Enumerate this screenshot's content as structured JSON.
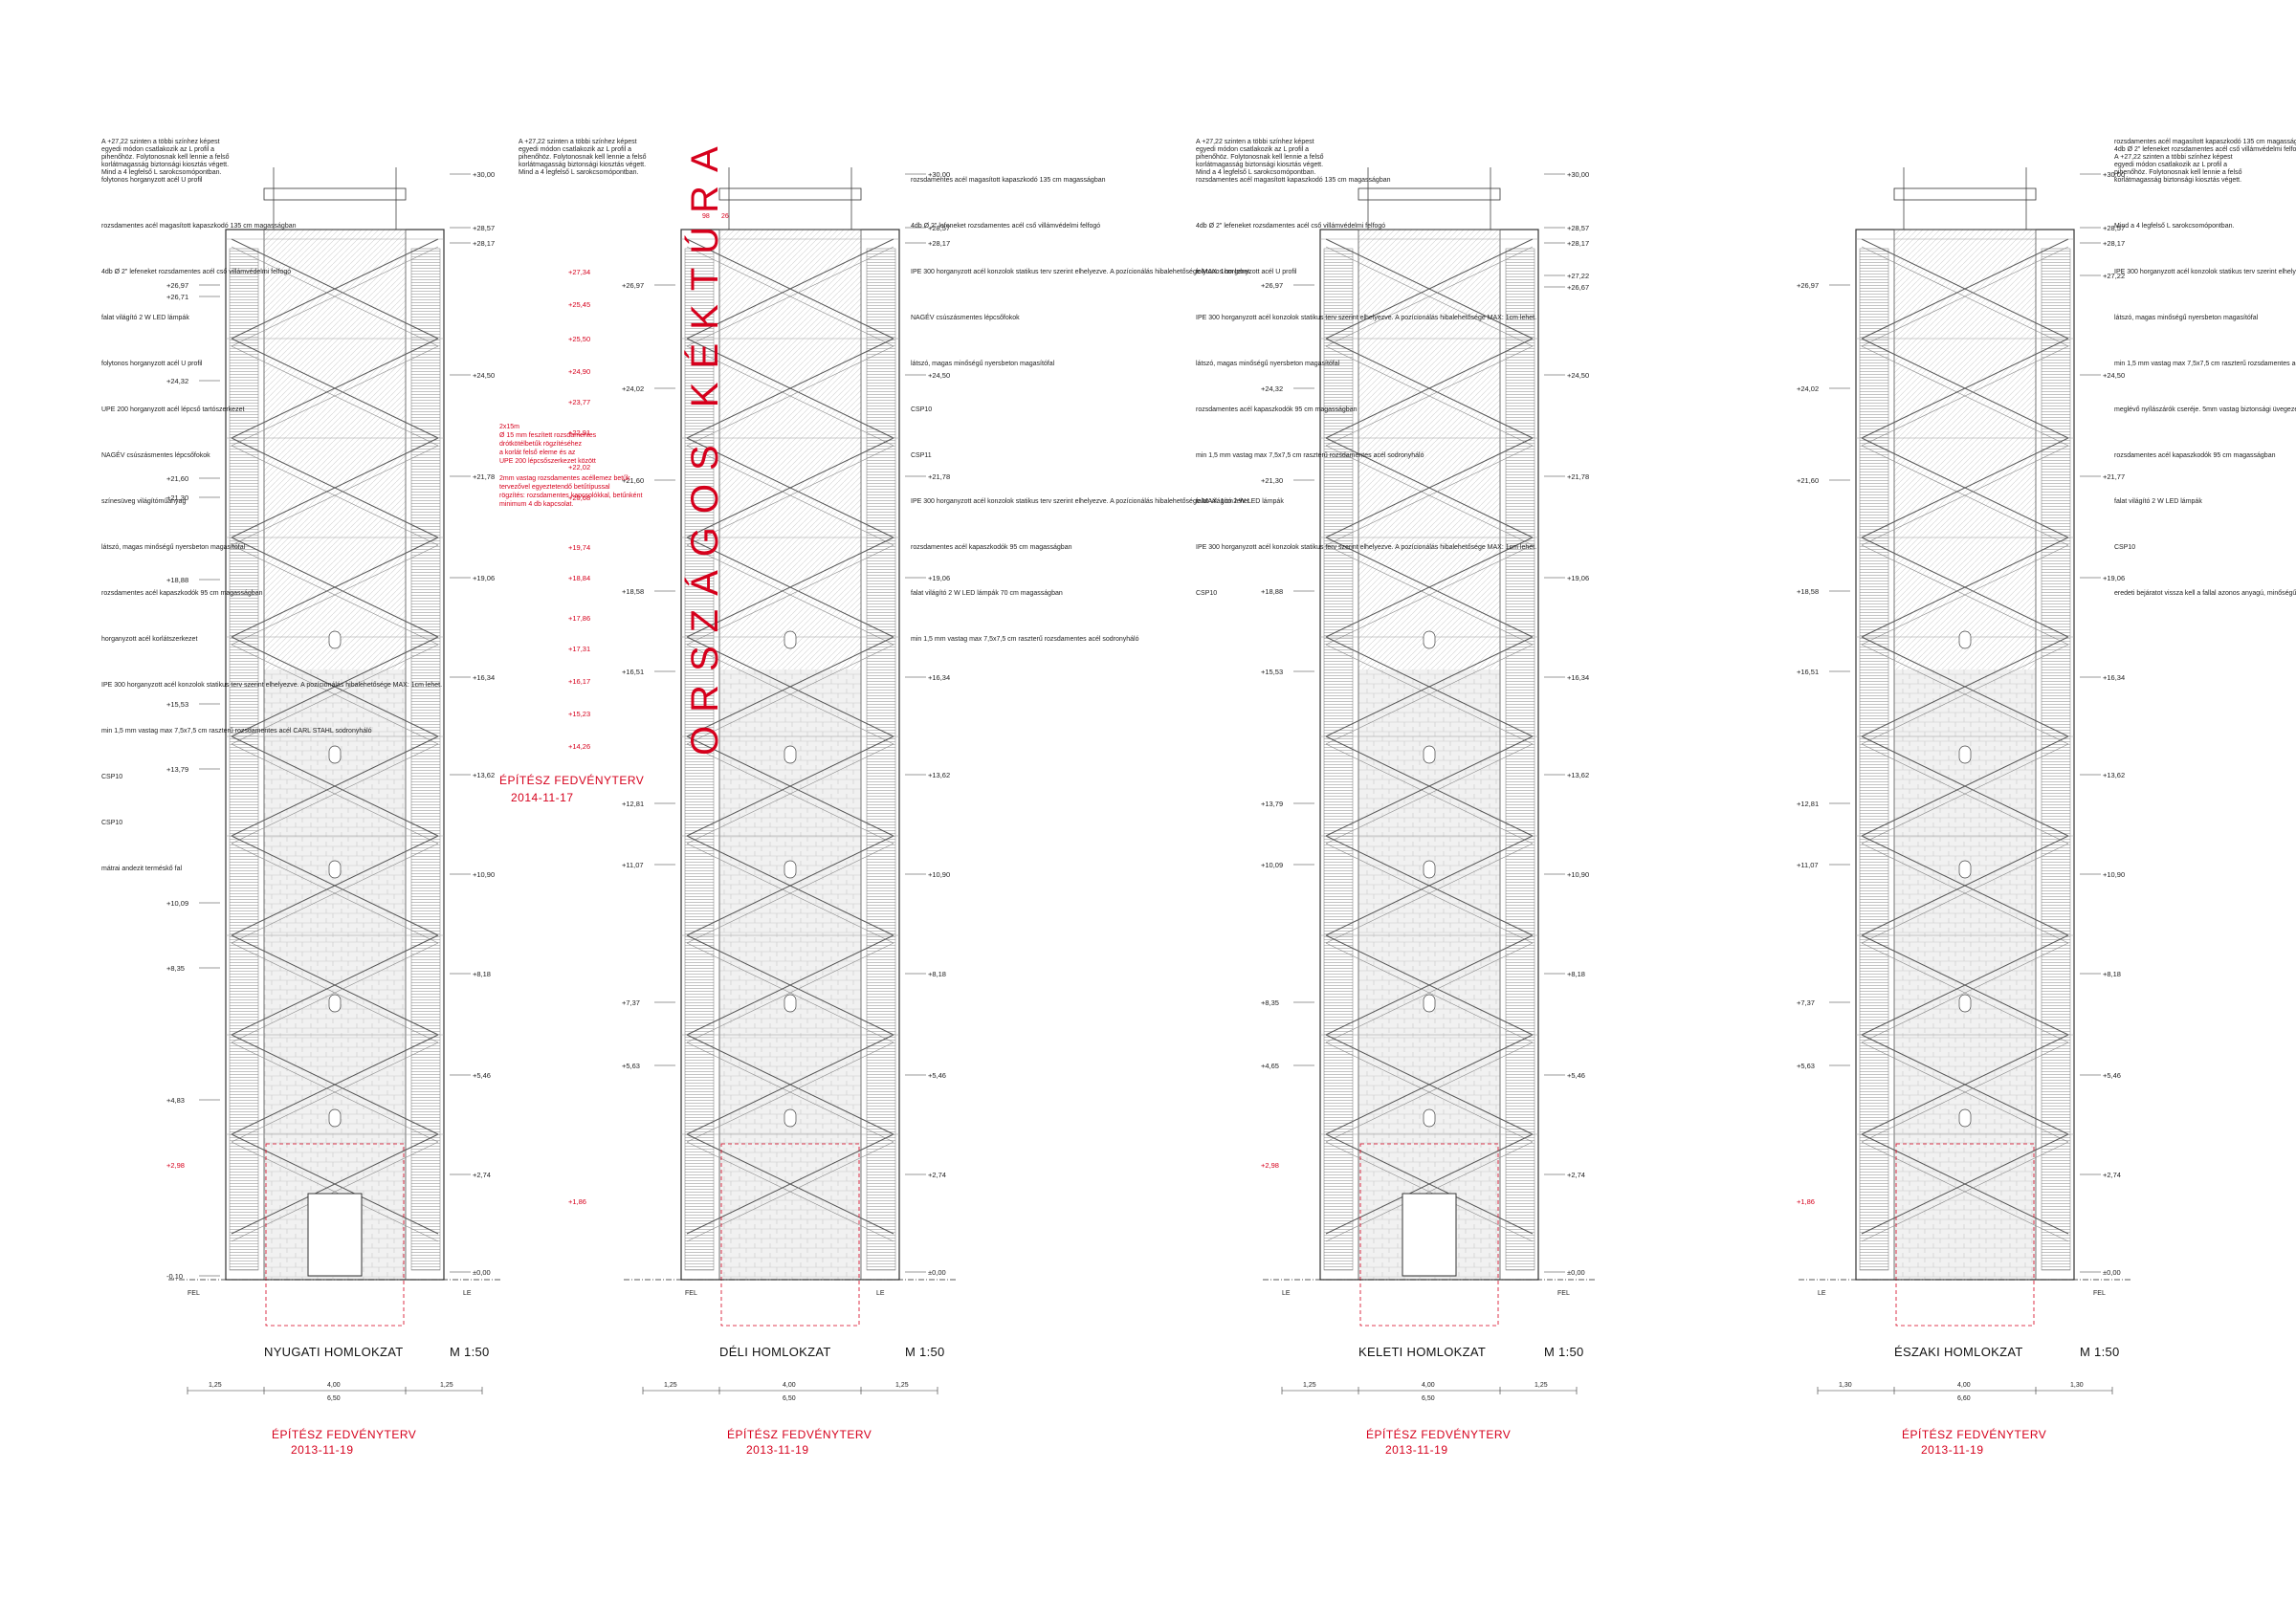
{
  "towers": [
    {
      "id": "west",
      "title": "NYUGATI HOMLOKZAT",
      "scale": "M 1:50",
      "stamp": [
        "ÉPÍTÉSZ FEDVÉNYTERV",
        "2013-11-19"
      ],
      "dims": [
        "1,25",
        "4,00",
        "1,25",
        "6,50"
      ],
      "bottom_labels": [
        "FEL",
        "LE"
      ],
      "levels_right": [
        "+30,00",
        "+28,57",
        "+28,17",
        "+24,50",
        "+21,78",
        "+19,06",
        "+16,34",
        "+13,62",
        "+10,90",
        "+8,18",
        "+5,46",
        "+2,74",
        "±0,00"
      ],
      "levels_left": [
        "+26,97",
        "+26,71",
        "+24,32",
        "+21,60",
        "+21,30",
        "+18,88",
        "+15,53",
        "+13,79",
        "+10,09",
        "+8,35",
        "+4,83",
        "-0,10"
      ],
      "levels_left_red": [
        "+2,98"
      ],
      "notes": [
        "A +27,22 szinten a többi színhez képest",
        "egyedi módon csatlakozik az L profil a",
        "pihenőhöz. Folytonosnak kell lennie a felső",
        "korlátmagasság biztonsági kiosztás végett.",
        "Mind a 4 legfelső L sarokcsomópontban.",
        "folytonos horganyzott acél U profil",
        "rozsdamentes acél magasított kapaszkodó 135 cm magasságban",
        "4db Ø 2\" lefeneket rozsdamentes acél cső villámvédelmi felfogó",
        "falat világító 2 W LED lámpák",
        "folytonos horganyzott acél U profil",
        "UPE 200 horganyzott acél lépcső tartószerkezet",
        "NAGÉV csúszásmentes lépcsőfokok",
        "színesüveg világítóműanyag",
        "látszó, magas minőségű nyersbeton magasítófal",
        "rozsdamentes acél kapaszkodók 95 cm magasságban",
        "horganyzott acél korlátszerkezet",
        "IPE 300 horganyzott acél konzolok statikus terv szerint elhelyezve. A pozícionálás hibalehetősége MAX: 1cm lehet.",
        "min 1,5 mm vastag max 7,5x7,5 cm raszterű rozsdamentes acél CARL STAHL sodronyháló",
        "CSP10",
        "CSP10",
        "mátrai andezit terméskő fal"
      ]
    },
    {
      "id": "south",
      "title": "DÉLI HOMLOKZAT",
      "scale": "M 1:50",
      "stamp": [
        "ÉPÍTÉSZ FEDVÉNYTERV",
        "2013-11-19"
      ],
      "dims": [
        "1,25",
        "4,00",
        "1,25",
        "6,50"
      ],
      "bottom_labels": [
        "FEL",
        "LE"
      ],
      "levels_right": [
        "+30,00",
        "+28,57",
        "+28,17",
        "+24,50",
        "+21,78",
        "+19,06",
        "+16,34",
        "+13,62",
        "+10,90",
        "+8,18",
        "+5,46",
        "+2,74",
        "±0,00"
      ],
      "levels_left": [
        "+26,97",
        "+24,02",
        "+21,60",
        "+18,58",
        "+16,51",
        "+12,81",
        "+11,07",
        "+7,37",
        "+5,63"
      ],
      "levels_left_red": [
        "+27,34",
        "+25,45",
        "+25,50",
        "+24,90",
        "+23,77",
        "+22,91",
        "+22,02",
        "+20,68",
        "+19,74",
        "+18,84",
        "+17,86",
        "+17,31",
        "+16,17",
        "+15,23",
        "+14,26",
        "+1,86"
      ],
      "notes": [
        "A +27,22 szinten a többi színhez képest",
        "egyedi módon csatlakozik az L profil a",
        "pihenőhöz. Folytonosnak kell lennie a felső",
        "korlátmagasság biztonsági kiosztás végett.",
        "Mind a 4 legfelső L sarokcsomópontban.",
        "rozsdamentes acél magasított kapaszkodó 135 cm magasságban",
        "4db Ø 2\" lefeneket rozsdamentes acél cső villámvédelmi felfogó",
        "IPE 300 horganyzott acél konzolok statikus terv szerint elhelyezve. A pozícionálás hibalehetősége MAX: 1cm lehet.",
        "NAGÉV csúszásmentes lépcsőfokok",
        "látszó, magas minőségű nyersbeton magasítófal",
        "CSP10",
        "CSP11",
        "IPE 300 horganyzott acél konzolok statikus terv szerint elhelyezve. A pozícionálás hibalehetősége MAX: 1cm lehet.",
        "rozsdamentes acél kapaszkodók 95 cm magasságban",
        "falat világító 2 W LED lámpák 70 cm magasságban",
        "min 1,5 mm vastag max 7,5x7,5 cm raszterű rozsdamentes acél sodronyháló"
      ],
      "red_notes": [
        "2x15m",
        "Ø 15 mm feszített rozsdamentes",
        "drótkötélbetűk rögzítéséhez",
        "a korlát felső eleme és az",
        "UPE 200 lépcsőszerkezet között",
        "2mm vastag rozsdamentes acéllemez betűk",
        "tervezővel egyeztetendő betűtípussal",
        "rögzítés: rozsdamentes kapcsolókkal, betűnként",
        "minimum 4 db kapcsolat."
      ],
      "red_dims": [
        "98",
        "26"
      ],
      "stamp_red": [
        "ÉPÍTÉSZ FEDVÉNYTERV",
        "2014-11-17"
      ],
      "vertical_banner": "ORSZÁGOS KÉKTÚRA"
    },
    {
      "id": "east",
      "title": "KELETI HOMLOKZAT",
      "scale": "M 1:50",
      "stamp": [
        "ÉPÍTÉSZ FEDVÉNYTERV",
        "2013-11-19"
      ],
      "dims": [
        "1,25",
        "4,00",
        "1,25",
        "6,50"
      ],
      "bottom_labels": [
        "LE",
        "FEL"
      ],
      "levels_right": [
        "+30,00",
        "+28,57",
        "+28,17",
        "+27,22",
        "+26,67",
        "+24,50",
        "+21,78",
        "+19,06",
        "+16,34",
        "+13,62",
        "+10,90",
        "+8,18",
        "+5,46",
        "+2,74",
        "±0,00"
      ],
      "levels_left": [
        "+26,97",
        "+24,32",
        "+21,30",
        "+18,88",
        "+15,53",
        "+13,79",
        "+10,09",
        "+8,35",
        "+4,65"
      ],
      "levels_left_red": [
        "+2,98"
      ],
      "notes": [
        "A +27,22 szinten a többi színhez képest",
        "egyedi módon csatlakozik az L profil a",
        "pihenőhöz. Folytonosnak kell lennie a felső",
        "korlátmagasság biztonsági kiosztás végett.",
        "Mind a 4 legfelső L sarokcsomópontban.",
        "rozsdamentes acél magasított kapaszkodó 135 cm magasságban",
        "4db Ø 2\" lefeneket rozsdamentes acél cső villámvédelmi felfogó",
        "folytonos horganyzott acél U profil",
        "IPE 300 horganyzott acél konzolok statikus terv szerint elhelyezve. A pozícionálás hibalehetősége MAX: 1cm lehet.",
        "látszó, magas minőségű nyersbeton magasítófal",
        "rozsdamentes acél kapaszkodók 95 cm magasságban",
        "min 1,5 mm vastag max 7,5x7,5 cm raszterű rozsdamentes acél sodronyháló",
        "falat világító 2 W LED lámpák",
        "IPE 300 horganyzott acél konzolok statikus terv szerint elhelyezve. A pozícionálás hibalehetősége MAX: 1cm lehet.",
        "CSP10"
      ]
    },
    {
      "id": "north",
      "title": "ÉSZAKI HOMLOKZAT",
      "scale": "M 1:50",
      "stamp": [
        "ÉPÍTÉSZ FEDVÉNYTERV",
        "2013-11-19"
      ],
      "dims": [
        "1,30",
        "4,00",
        "1,30",
        "6,60"
      ],
      "bottom_labels": [
        "LE",
        "FEL"
      ],
      "levels_right": [
        "+30,00",
        "+28,57",
        "+28,17",
        "+27,22",
        "+24,50",
        "+21,77",
        "+19,06",
        "+16,34",
        "+13,62",
        "+10,90",
        "+8,18",
        "+5,46",
        "+2,74",
        "±0,00"
      ],
      "levels_left": [
        "+26,97",
        "+24,02",
        "+21,60",
        "+18,58",
        "+16,51",
        "+12,81",
        "+11,07",
        "+7,37",
        "+5,63"
      ],
      "levels_left_red": [
        "+1,86"
      ],
      "notes": [
        "rozsdamentes acél magasított kapaszkodó 135 cm magasságban",
        "4db Ø 2\" lefeneket rozsdamentes acél cső villámvédelmi felfogó",
        "A +27,22 szinten a többi színhez képest",
        "egyedi módon csatlakozik az L profil a",
        "pihenőhöz. Folytonosnak kell lennie a felső",
        "korlátmagasság biztonsági kiosztás végett.",
        "Mind a 4 legfelső L sarokcsomópontban.",
        "IPE 300 horganyzott acél konzolok statikus terv szerint elhelyezve. A pozícionálás hibalehetősége MAX: 1cm lehet.",
        "látszó, magas minőségű nyersbeton magasítófal",
        "min 1,5 mm vastag max 7,5x7,5 cm raszterű rozsdamentes acél sodronyháló",
        "meglévő nyílászárók cseréje. 5mm vastag biztonsági üvegezéssel",
        "rozsdamentes acél kapaszkodók 95 cm magasságban",
        "falat világító 2 W LED lámpák",
        "CSP10",
        "eredeti bejáratot vissza kell a fallal azonos anyagú, minőségű és felépítési struktúrájú kővel építeni"
      ]
    }
  ]
}
